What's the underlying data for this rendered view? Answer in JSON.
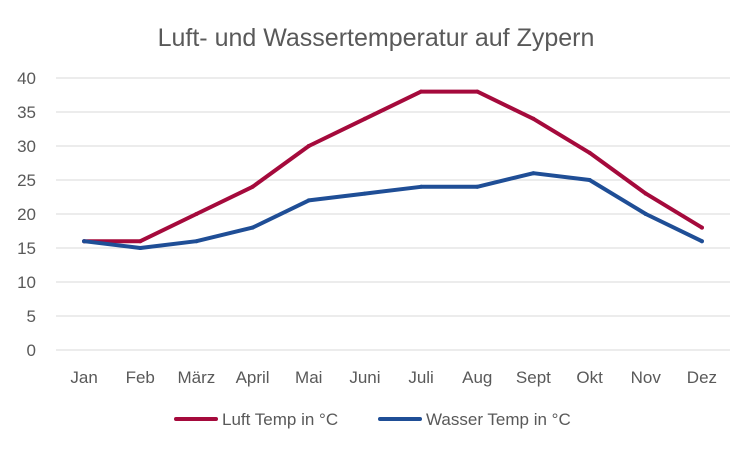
{
  "chart_data": {
    "type": "line",
    "title": "Luft- und Wassertemperatur auf Zypern",
    "xlabel": "",
    "ylabel": "",
    "categories": [
      "Jan",
      "Feb",
      "März",
      "April",
      "Mai",
      "Juni",
      "Juli",
      "Aug",
      "Sept",
      "Okt",
      "Nov",
      "Dez"
    ],
    "ylim": [
      0,
      40
    ],
    "yticks": [
      "0",
      "5",
      "10",
      "15",
      "20",
      "25",
      "30",
      "35",
      "40"
    ],
    "grid": true,
    "legend_position": "bottom",
    "series": [
      {
        "name": "Luft Temp in °C",
        "color": "#a50a3c",
        "values": [
          16,
          16,
          20,
          24,
          30,
          34,
          38,
          38,
          34,
          29,
          23,
          18
        ]
      },
      {
        "name": "Wasser Temp in °C",
        "color": "#1f4e96",
        "values": [
          16,
          15,
          16,
          18,
          22,
          23,
          24,
          24,
          26,
          25,
          20,
          16
        ]
      }
    ]
  }
}
